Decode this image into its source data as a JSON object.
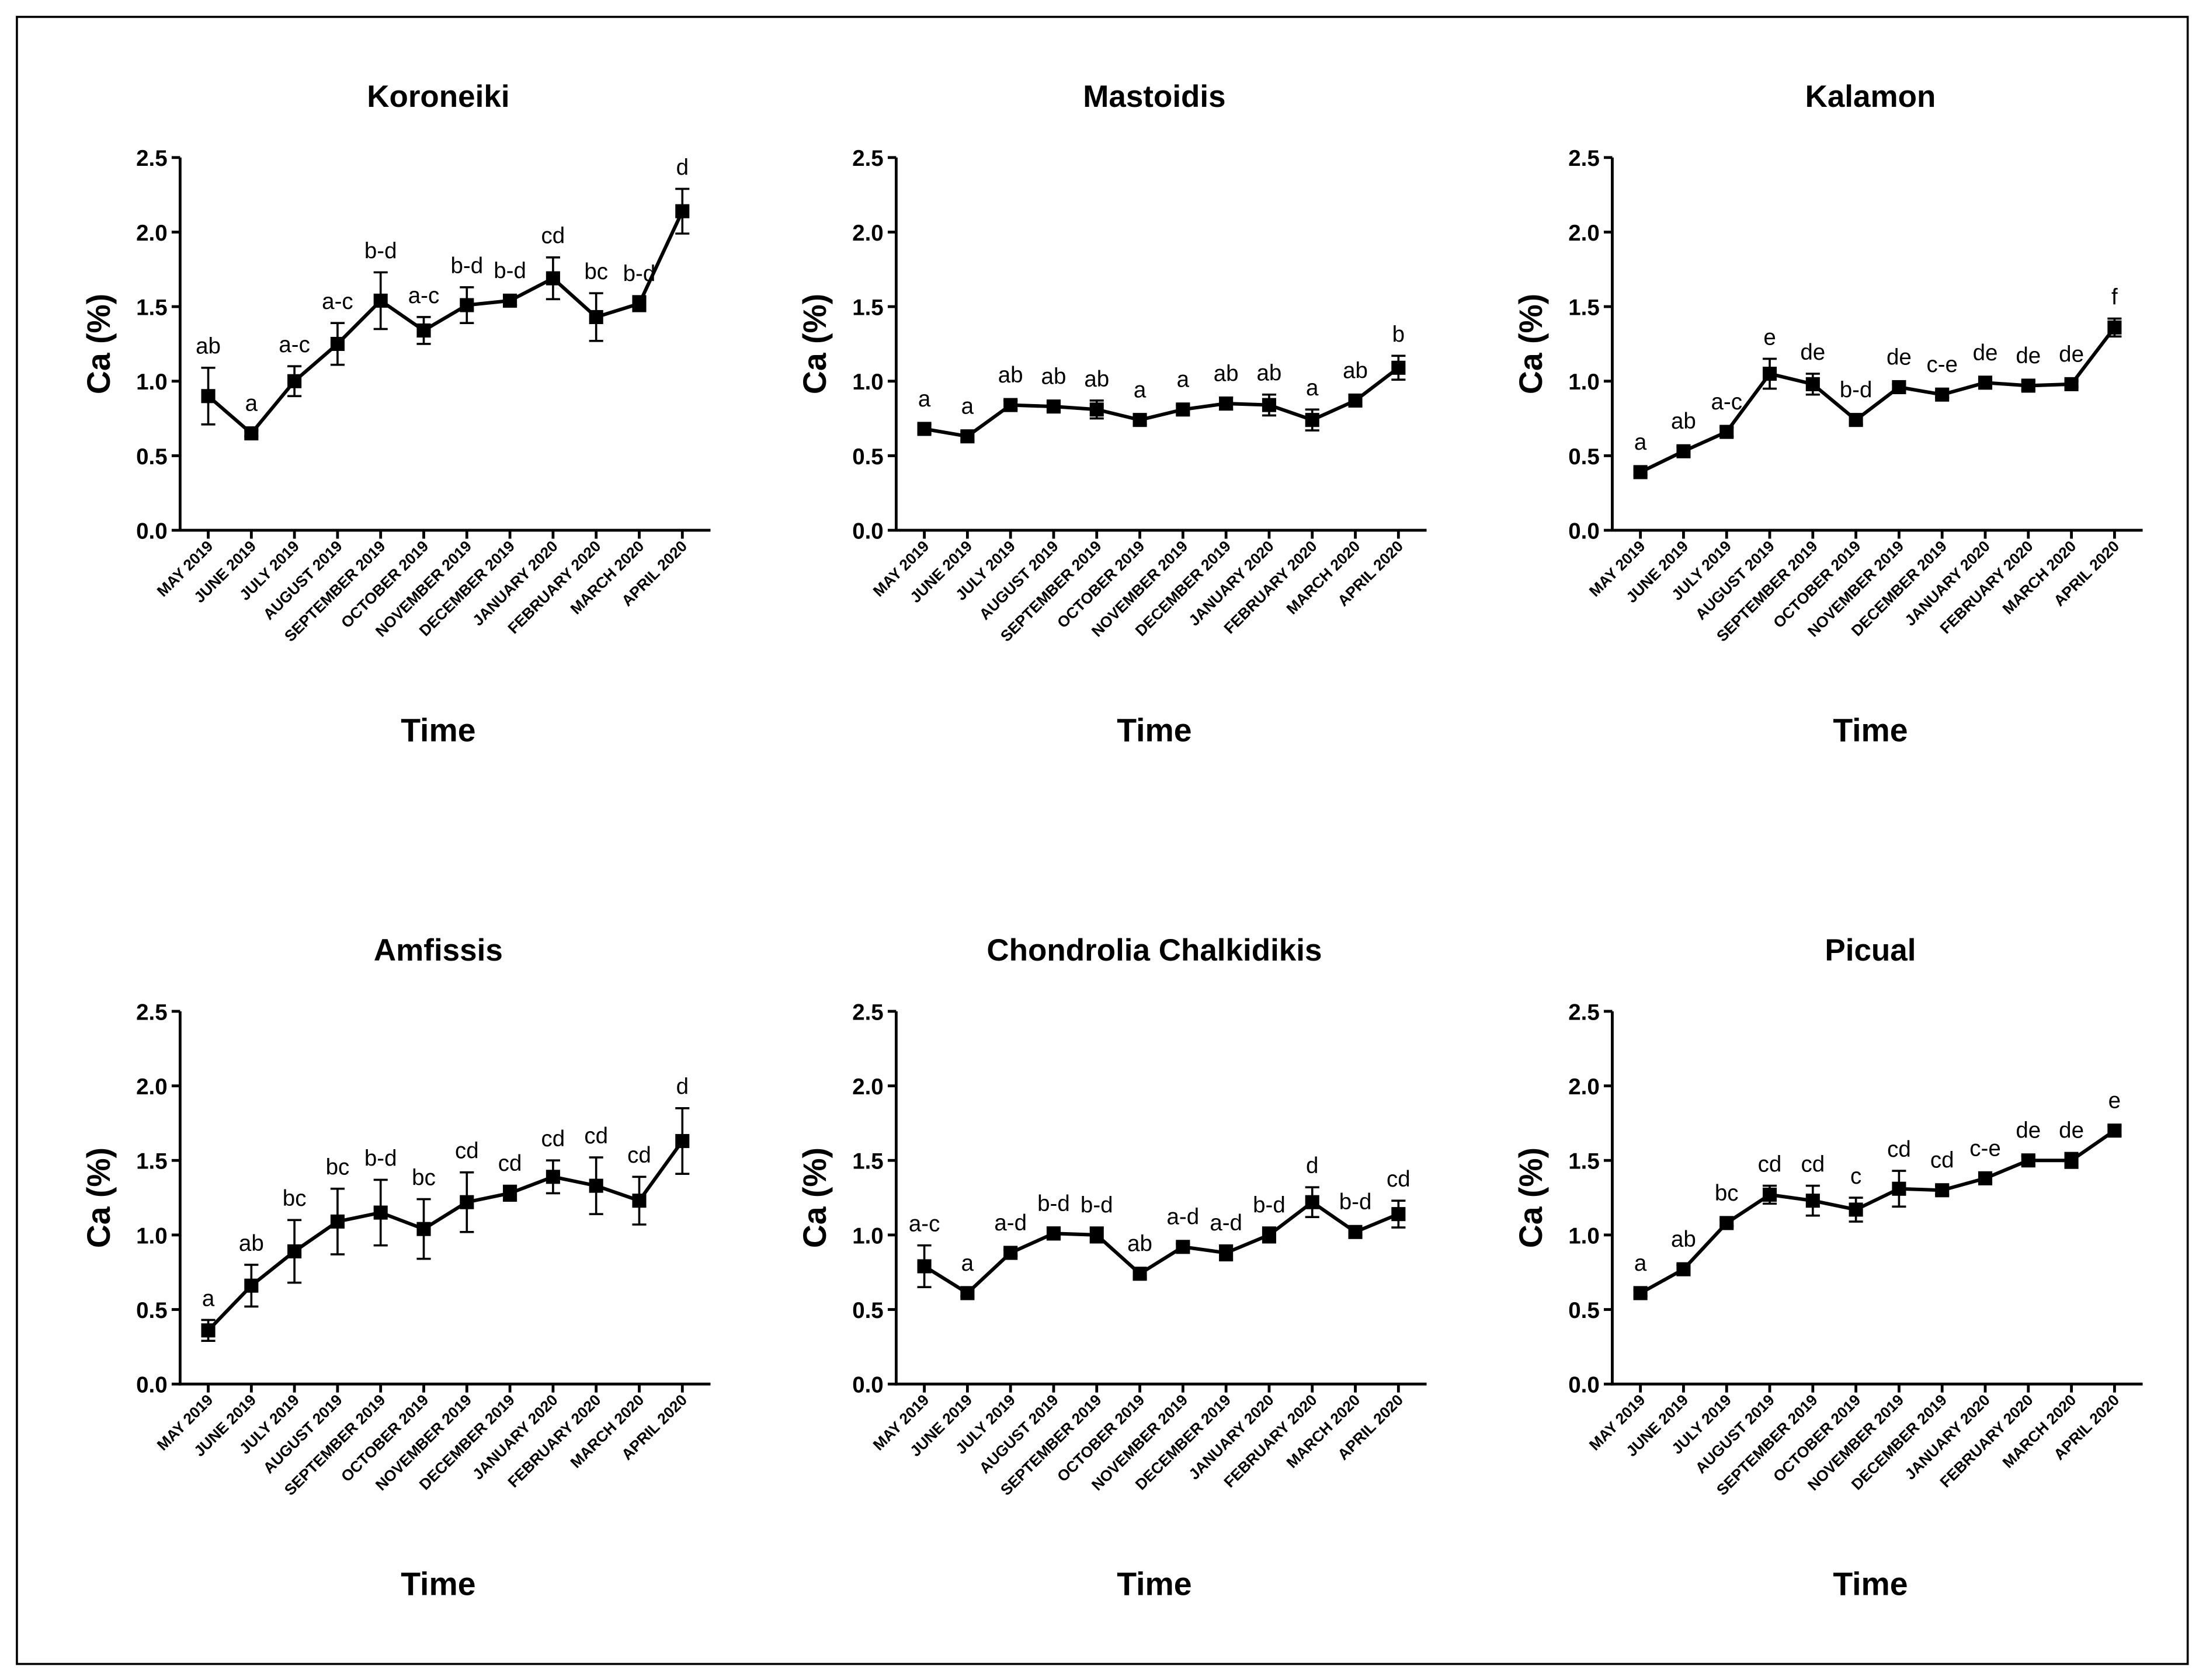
{
  "chart_data": [
    {
      "type": "line",
      "title": "Koroneiki",
      "xlabel": "Time",
      "ylabel": "Ca (%)",
      "categories": [
        "MAY 2019",
        "JUNE 2019",
        "JULY 2019",
        "AUGUST 2019",
        "SEPTEMBER 2019",
        "OCTOBER 2019",
        "NOVEMBER 2019",
        "DECEMBER 2019",
        "JANUARY 2020",
        "FEBRUARY 2020",
        "MARCH 2020",
        "APRIL 2020"
      ],
      "values": [
        0.9,
        0.65,
        1.0,
        1.25,
        1.54,
        1.34,
        1.51,
        1.54,
        1.69,
        1.43,
        1.52,
        2.14
      ],
      "errors": [
        0.19,
        0.02,
        0.1,
        0.14,
        0.19,
        0.09,
        0.12,
        0.03,
        0.14,
        0.16,
        0.05,
        0.15
      ],
      "letters": [
        "ab",
        "a",
        "a-c",
        "a-c",
        "b-d",
        "a-c",
        "b-d",
        "b-d",
        "cd",
        "bc",
        "b-d",
        "d"
      ],
      "color": "#000000",
      "ylim": [
        0,
        2.5
      ],
      "yticks": [
        {
          "value": 0,
          "label": "0.0"
        },
        {
          "value": 0.5,
          "label": "0.5"
        },
        {
          "value": 1,
          "label": "1.0"
        },
        {
          "value": 1.5,
          "label": "1.5"
        },
        {
          "value": 2,
          "label": "2.0"
        },
        {
          "value": 2.5,
          "label": "2.5"
        }
      ]
    },
    {
      "type": "line",
      "title": "Mastoidis",
      "xlabel": "Time",
      "ylabel": "Ca (%)",
      "categories": [
        "MAY 2019",
        "JUNE 2019",
        "JULY 2019",
        "AUGUST 2019",
        "SEPTEMBER 2019",
        "OCTOBER 2019",
        "NOVEMBER 2019",
        "DECEMBER 2019",
        "JANUARY 2020",
        "FEBRUARY 2020",
        "MARCH 2020",
        "APRIL 2020"
      ],
      "values": [
        0.68,
        0.63,
        0.84,
        0.83,
        0.81,
        0.74,
        0.81,
        0.85,
        0.84,
        0.74,
        0.87,
        1.09
      ],
      "errors": [
        0.03,
        0.03,
        0.03,
        0.03,
        0.06,
        0.03,
        0.03,
        0.04,
        0.07,
        0.07,
        0.03,
        0.08
      ],
      "letters": [
        "a",
        "a",
        "ab",
        "ab",
        "ab",
        "a",
        "a",
        "ab",
        "ab",
        "a",
        "ab",
        "b"
      ],
      "color": "#000000",
      "ylim": [
        0,
        2.5
      ],
      "yticks": [
        {
          "value": 0,
          "label": "0.0"
        },
        {
          "value": 0.5,
          "label": "0.5"
        },
        {
          "value": 1,
          "label": "1.0"
        },
        {
          "value": 1.5,
          "label": "1.5"
        },
        {
          "value": 2,
          "label": "2.0"
        },
        {
          "value": 2.5,
          "label": "2.5"
        }
      ]
    },
    {
      "type": "line",
      "title": "Kalamon",
      "xlabel": "Time",
      "ylabel": "Ca (%)",
      "categories": [
        "MAY 2019",
        "JUNE 2019",
        "JULY 2019",
        "AUGUST 2019",
        "SEPTEMBER 2019",
        "OCTOBER 2019",
        "NOVEMBER 2019",
        "DECEMBER 2019",
        "JANUARY 2020",
        "FEBRUARY 2020",
        "MARCH 2020",
        "APRIL 2020"
      ],
      "values": [
        0.39,
        0.53,
        0.66,
        1.05,
        0.98,
        0.74,
        0.96,
        0.91,
        0.99,
        0.97,
        0.98,
        1.36
      ],
      "errors": [
        0.02,
        0.03,
        0.03,
        0.1,
        0.07,
        0.03,
        0.02,
        0.02,
        0.02,
        0.03,
        0.02,
        0.06
      ],
      "letters": [
        "a",
        "ab",
        "a-c",
        "e",
        "de",
        "b-d",
        "de",
        "c-e",
        "de",
        "de",
        "de",
        "f"
      ],
      "color": "#000000",
      "ylim": [
        0,
        2.5
      ],
      "yticks": [
        {
          "value": 0,
          "label": "0.0"
        },
        {
          "value": 0.5,
          "label": "0.5"
        },
        {
          "value": 1,
          "label": "1.0"
        },
        {
          "value": 1.5,
          "label": "1.5"
        },
        {
          "value": 2,
          "label": "2.0"
        },
        {
          "value": 2.5,
          "label": "2.5"
        }
      ]
    },
    {
      "type": "line",
      "title": "Amfissis",
      "xlabel": "Time",
      "ylabel": "Ca (%)",
      "categories": [
        "MAY 2019",
        "JUNE 2019",
        "JULY 2019",
        "AUGUST 2019",
        "SEPTEMBER 2019",
        "OCTOBER 2019",
        "NOVEMBER 2019",
        "DECEMBER 2019",
        "JANUARY 2020",
        "FEBRUARY 2020",
        "MARCH 2020",
        "APRIL 2020"
      ],
      "values": [
        0.36,
        0.66,
        0.89,
        1.09,
        1.15,
        1.04,
        1.22,
        1.28,
        1.39,
        1.33,
        1.23,
        1.63
      ],
      "errors": [
        0.07,
        0.14,
        0.21,
        0.22,
        0.22,
        0.2,
        0.2,
        0.05,
        0.11,
        0.19,
        0.16,
        0.22
      ],
      "letters": [
        "a",
        "ab",
        "bc",
        "bc",
        "b-d",
        "bc",
        "cd",
        "cd",
        "cd",
        "cd",
        "cd",
        "d"
      ],
      "color": "#000000",
      "ylim": [
        0,
        2.5
      ],
      "yticks": [
        {
          "value": 0,
          "label": "0.0"
        },
        {
          "value": 0.5,
          "label": "0.5"
        },
        {
          "value": 1,
          "label": "1.0"
        },
        {
          "value": 1.5,
          "label": "1.5"
        },
        {
          "value": 2,
          "label": "2.0"
        },
        {
          "value": 2.5,
          "label": "2.5"
        }
      ]
    },
    {
      "type": "line",
      "title": "Chondrolia Chalkidikis",
      "xlabel": "Time",
      "ylabel": "Ca (%)",
      "categories": [
        "MAY 2019",
        "JUNE 2019",
        "JULY 2019",
        "AUGUST 2019",
        "SEPTEMBER 2019",
        "OCTOBER 2019",
        "NOVEMBER 2019",
        "DECEMBER 2019",
        "JANUARY 2020",
        "FEBRUARY 2020",
        "MARCH 2020",
        "APRIL 2020"
      ],
      "values": [
        0.79,
        0.61,
        0.88,
        1.01,
        1.0,
        0.74,
        0.92,
        0.88,
        1.0,
        1.22,
        1.02,
        1.14
      ],
      "errors": [
        0.14,
        0.02,
        0.02,
        0.04,
        0.05,
        0.03,
        0.02,
        0.05,
        0.05,
        0.1,
        0.02,
        0.09
      ],
      "letters": [
        "a-c",
        "a",
        "a-d",
        "b-d",
        "b-d",
        "ab",
        "a-d",
        "a-d",
        "b-d",
        "d",
        "b-d",
        "cd"
      ],
      "color": "#000000",
      "ylim": [
        0,
        2.5
      ],
      "yticks": [
        {
          "value": 0,
          "label": "0.0"
        },
        {
          "value": 0.5,
          "label": "0.5"
        },
        {
          "value": 1,
          "label": "1.0"
        },
        {
          "value": 1.5,
          "label": "1.5"
        },
        {
          "value": 2,
          "label": "2.0"
        },
        {
          "value": 2.5,
          "label": "2.5"
        }
      ]
    },
    {
      "type": "line",
      "title": "Picual",
      "xlabel": "Time",
      "ylabel": "Ca (%)",
      "categories": [
        "MAY 2019",
        "JUNE 2019",
        "JULY 2019",
        "AUGUST 2019",
        "SEPTEMBER 2019",
        "OCTOBER 2019",
        "NOVEMBER 2019",
        "DECEMBER 2019",
        "JANUARY 2020",
        "FEBRUARY 2020",
        "MARCH 2020",
        "APRIL 2020"
      ],
      "values": [
        0.61,
        0.77,
        1.08,
        1.27,
        1.23,
        1.17,
        1.31,
        1.3,
        1.38,
        1.5,
        1.5,
        1.7
      ],
      "errors": [
        0.02,
        0.03,
        0.02,
        0.06,
        0.1,
        0.08,
        0.12,
        0.03,
        0.03,
        0.03,
        0.05,
        0.03
      ],
      "letters": [
        "a",
        "ab",
        "bc",
        "cd",
        "cd",
        "c",
        "cd",
        "cd",
        "c-e",
        "de",
        "de",
        "e"
      ],
      "color": "#000000",
      "ylim": [
        0,
        2.5
      ],
      "yticks": [
        {
          "value": 0,
          "label": "0.0"
        },
        {
          "value": 0.5,
          "label": "0.5"
        },
        {
          "value": 1,
          "label": "1.0"
        },
        {
          "value": 1.5,
          "label": "1.5"
        },
        {
          "value": 2,
          "label": "2.0"
        },
        {
          "value": 2.5,
          "label": "2.5"
        }
      ]
    }
  ]
}
